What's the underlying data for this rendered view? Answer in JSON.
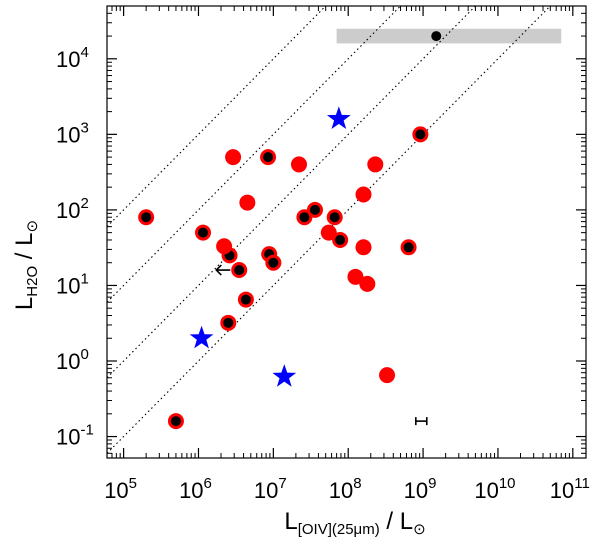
{
  "chart_data": {
    "type": "scatter",
    "x_scale": "log",
    "y_scale": "log",
    "xlim": [
      60000,
      150000000000
    ],
    "ylim": [
      0.052,
      50000
    ],
    "xlabel": {
      "main": "L",
      "sub": "[OIV](25μm)",
      "tail": " / L",
      "sun": "⊙"
    },
    "ylabel": {
      "main": "L",
      "sub": "H2O",
      "tail": " / L",
      "sun": "⊙"
    },
    "x_ticks": [
      {
        "value": 100000,
        "base": "10",
        "exp": "5"
      },
      {
        "value": 1000000,
        "base": "10",
        "exp": "6"
      },
      {
        "value": 10000000,
        "base": "10",
        "exp": "7"
      },
      {
        "value": 100000000,
        "base": "10",
        "exp": "8"
      },
      {
        "value": 1000000000,
        "base": "10",
        "exp": "9"
      },
      {
        "value": 10000000000,
        "base": "10",
        "exp": "10"
      },
      {
        "value": 100000000000,
        "base": "10",
        "exp": "11"
      }
    ],
    "y_ticks": [
      {
        "value": 0.1,
        "base": "10",
        "exp": "-1"
      },
      {
        "value": 1,
        "base": "10",
        "exp": "0"
      },
      {
        "value": 10,
        "base": "10",
        "exp": "1"
      },
      {
        "value": 100,
        "base": "10",
        "exp": "2"
      },
      {
        "value": 1000,
        "base": "10",
        "exp": "3"
      },
      {
        "value": 10000,
        "base": "10",
        "exp": "4"
      }
    ],
    "grid": false,
    "reference_lines": {
      "slope": 1,
      "ratios": [
        0.001,
        0.0001,
        1e-05,
        1e-06
      ]
    },
    "band": {
      "x": [
        70000000,
        70000000000
      ],
      "y": [
        16000,
        25000
      ],
      "color": "#cccccc"
    },
    "series": [
      {
        "marker": "circle",
        "fill": "#ff0000",
        "center": "#000000",
        "points": [
          [
            200000,
            80
          ],
          [
            1150000,
            50
          ],
          [
            2600000,
            25
          ],
          [
            3500000,
            16
          ],
          [
            4300000,
            6.5
          ],
          [
            2500000,
            3.2
          ],
          [
            8500000,
            500
          ],
          [
            8800000,
            26
          ],
          [
            10000000,
            20
          ],
          [
            26000000,
            80
          ],
          [
            36000000,
            100
          ],
          [
            66000000,
            80
          ],
          [
            78000000,
            40
          ],
          [
            640000000,
            32
          ],
          [
            920000000,
            1000
          ],
          [
            500000,
            0.16
          ]
        ]
      },
      {
        "marker": "circle",
        "fill": "#ff0000",
        "points": [
          [
            2900000,
            500
          ],
          [
            2200000,
            33
          ],
          [
            4500000,
            125
          ],
          [
            22000000,
            400
          ],
          [
            55000000,
            50
          ],
          [
            160000000,
            160
          ],
          [
            230000000,
            400
          ],
          [
            160000000,
            32
          ],
          [
            125000000,
            13
          ],
          [
            180000000,
            10.5
          ],
          [
            330000000,
            0.65
          ]
        ]
      },
      {
        "marker": "circle",
        "fill": "#000000",
        "points": [
          [
            1500000000,
            20000
          ]
        ]
      },
      {
        "marker": "star",
        "fill": "#0000ff",
        "points": [
          [
            75000000,
            1600
          ],
          [
            1100000,
            2
          ],
          [
            14000000,
            0.62
          ]
        ]
      }
    ],
    "upper_limit": {
      "x": 3200000,
      "y": 16,
      "direction": "left"
    },
    "error_bar": {
      "x": 950000000,
      "y": 0.16,
      "x_range": [
        800000000,
        1120000000
      ]
    }
  }
}
